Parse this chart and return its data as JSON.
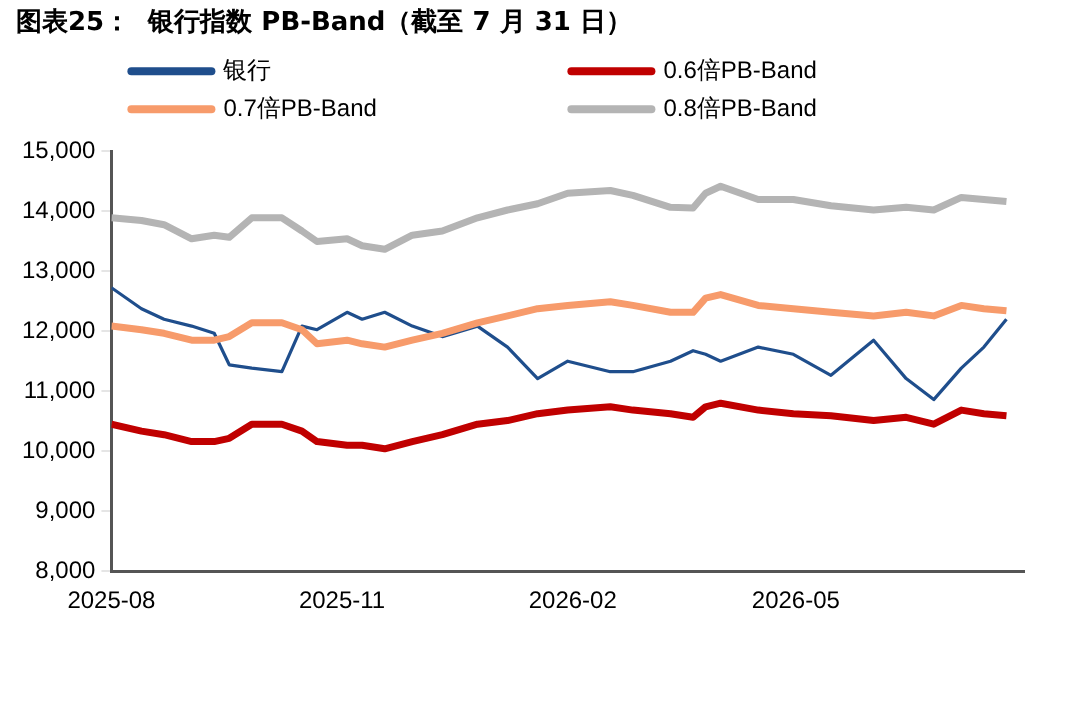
{
  "chart_data": {
    "type": "line",
    "title": "图表25：  银行指数 PB-Band（截至 7 月 31 日）",
    "x": [
      "2025-08-01",
      "2025-08-13",
      "2025-08-22",
      "2025-09-02",
      "2025-09-11",
      "2025-09-17",
      "2025-09-26",
      "2025-10-08",
      "2025-10-16",
      "2025-10-22",
      "2025-11-03",
      "2025-11-09",
      "2025-11-18",
      "2025-11-29",
      "2025-12-11",
      "2025-12-25",
      "2026-01-06",
      "2026-01-18",
      "2026-01-30",
      "2026-02-16",
      "2026-02-25",
      "2026-03-12",
      "2026-03-21",
      "2026-03-26",
      "2026-04-01",
      "2026-04-16",
      "2026-04-30",
      "2026-05-15",
      "2026-06-01",
      "2026-06-14",
      "2026-06-25",
      "2026-07-06",
      "2026-07-15",
      "2026-07-24"
    ],
    "series": [
      {
        "name": "银行",
        "color": "#1f4e8c",
        "values": [
          12725,
          12375,
          12200,
          12085,
          11965,
          11440,
          11385,
          11325,
          12085,
          12025,
          12315,
          12200,
          12315,
          12085,
          11910,
          12085,
          11735,
          11210,
          11500,
          11325,
          11325,
          11500,
          11675,
          11615,
          11500,
          11735,
          11615,
          11265,
          11850,
          11210,
          10860,
          11385,
          11735,
          12200
        ]
      },
      {
        "name": "0.6倍PB-Band",
        "color": "#c00000",
        "values": [
          10450,
          10335,
          10275,
          10160,
          10160,
          10215,
          10450,
          10450,
          10335,
          10160,
          10100,
          10100,
          10040,
          10160,
          10275,
          10450,
          10510,
          10625,
          10685,
          10740,
          10685,
          10625,
          10565,
          10740,
          10800,
          10685,
          10625,
          10590,
          10510,
          10565,
          10450,
          10685,
          10625,
          10590
        ]
      },
      {
        "name": "0.7倍PB-Band",
        "color": "#f79b6b",
        "values": [
          12085,
          12025,
          11965,
          11850,
          11850,
          11910,
          12140,
          12140,
          12025,
          11790,
          11850,
          11790,
          11735,
          11850,
          11965,
          12140,
          12255,
          12375,
          12430,
          12490,
          12430,
          12315,
          12315,
          12550,
          12610,
          12430,
          12375,
          12315,
          12255,
          12315,
          12255,
          12430,
          12375,
          12340
        ]
      },
      {
        "name": "0.8倍PB-Band",
        "color": "#b4b4b4",
        "values": [
          13890,
          13845,
          13775,
          13540,
          13600,
          13565,
          13890,
          13890,
          13670,
          13495,
          13540,
          13425,
          13365,
          13600,
          13670,
          13890,
          14020,
          14125,
          14300,
          14345,
          14265,
          14065,
          14055,
          14300,
          14415,
          14195,
          14195,
          14090,
          14020,
          14065,
          14020,
          14230,
          14195,
          14160
        ]
      }
    ],
    "xlim": [
      "2025-08-01",
      "2026-07-31"
    ],
    "xticks": [
      "2025-08",
      "2025-11",
      "2026-02",
      "2026-05"
    ],
    "ylim": [
      8000,
      15000
    ],
    "yticks": [
      {
        "value": 8000,
        "label": "8,000"
      },
      {
        "value": 9000,
        "label": "9,000"
      },
      {
        "value": 10000,
        "label": "10,000"
      },
      {
        "value": 11000,
        "label": "11,000"
      },
      {
        "value": 12000,
        "label": "12,000"
      },
      {
        "value": 13000,
        "label": "13,000"
      },
      {
        "value": 14000,
        "label": "14,000"
      },
      {
        "value": 15000,
        "label": "15,000"
      }
    ],
    "grid": false,
    "legend": "top",
    "marker": "none",
    "line_style": "solid"
  }
}
